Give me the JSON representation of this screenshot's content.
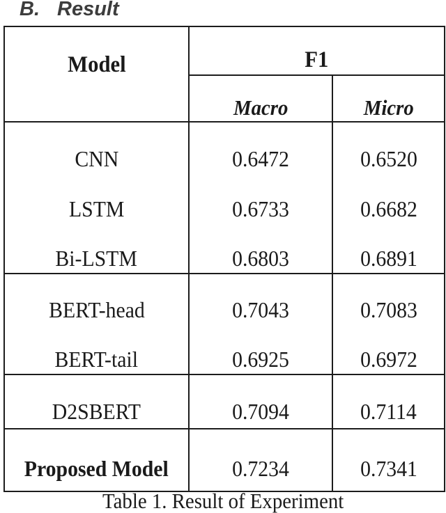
{
  "heading": {
    "number": "B.",
    "title": "Result"
  },
  "table": {
    "header": {
      "model": "Model",
      "f1": "F1",
      "macro": "Macro",
      "micro": "Micro"
    },
    "rows": [
      {
        "model": "CNN",
        "macro": "0.6472",
        "micro": "0.6520"
      },
      {
        "model": "LSTM",
        "macro": "0.6733",
        "micro": "0.6682"
      },
      {
        "model": "Bi-LSTM",
        "macro": "0.6803",
        "micro": "0.6891"
      },
      {
        "model": "BERT-head",
        "macro": "0.7043",
        "micro": "0.7083"
      },
      {
        "model": "BERT-tail",
        "macro": "0.6925",
        "micro": "0.6972"
      },
      {
        "model": "D2SBERT",
        "macro": "0.7094",
        "micro": "0.7114"
      },
      {
        "model": "Proposed Model",
        "macro": "0.7234",
        "micro": "0.7341"
      }
    ],
    "caption": "Table 1. Result of Experiment"
  },
  "colors": {
    "border": "#1c1c1c",
    "text": "#1a1a1a",
    "heading_text": "#3d3d3d",
    "background": "#ffffff"
  }
}
